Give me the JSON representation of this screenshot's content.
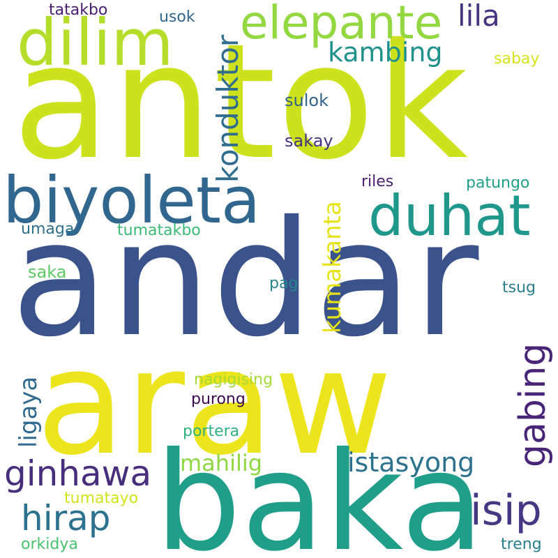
{
  "words": {
    "antok": {
      "text": "antok",
      "color": "#cde11d"
    },
    "andar": {
      "text": "andar",
      "color": "#3a538b"
    },
    "araw": {
      "text": "araw",
      "color": "#ece51b"
    },
    "baka": {
      "text": "baka",
      "color": "#1f9e89"
    },
    "biyoleta": {
      "text": "biyoleta",
      "color": "#31668e"
    },
    "dilim": {
      "text": "dilim",
      "color": "#b5de2b"
    },
    "elepante": {
      "text": "elepante",
      "color": "#93d741"
    },
    "duhat": {
      "text": "duhat",
      "color": "#1f978b"
    },
    "gabing": {
      "text": "gabing",
      "color": "#482576"
    },
    "ginhawa": {
      "text": "ginhawa",
      "color": "#472d7b"
    },
    "hirap": {
      "text": "hirap",
      "color": "#2c718e"
    },
    "isip": {
      "text": "isip",
      "color": "#453781"
    },
    "kondukor": {
      "text": "konduktor",
      "color": "#2f6c8e"
    },
    "kambing": {
      "text": "kambing",
      "color": "#21918c"
    },
    "lila": {
      "text": "lila",
      "color": "#463480"
    },
    "kumakanta": {
      "text": "kumakanta",
      "color": "#e5e419"
    },
    "istasyong": {
      "text": "istasyong",
      "color": "#2c728e"
    },
    "mahilig": {
      "text": "mahilig",
      "color": "#90d743"
    },
    "ligaya": {
      "text": "ligaya",
      "color": "#306a8e"
    },
    "tatakbo": {
      "text": "tatakbo",
      "color": "#481c6e"
    },
    "usok": {
      "text": "usok",
      "color": "#31678e"
    },
    "sabay": {
      "text": "sabay",
      "color": "#d8e219"
    },
    "sulok": {
      "text": "sulok",
      "color": "#33628d"
    },
    "sakay": {
      "text": "sakay",
      "color": "#46327e"
    },
    "riles": {
      "text": "riles",
      "color": "#481f70"
    },
    "patungo": {
      "text": "patungo",
      "color": "#1fa088"
    },
    "umaga": {
      "text": "umaga",
      "color": "#2e6e8e"
    },
    "tumatakbo": {
      "text": "tumatakbo",
      "color": "#3bbb75"
    },
    "saka": {
      "text": "saka",
      "color": "#5ec962"
    },
    "pag": {
      "text": "pag",
      "color": "#25848e"
    },
    "tsug": {
      "text": "tsug",
      "color": "#287d8e"
    },
    "nagigising": {
      "text": "nagigising",
      "color": "#a5db36"
    },
    "purong": {
      "text": "purong",
      "color": "#3e0751"
    },
    "portera": {
      "text": "portera",
      "color": "#2db27d"
    },
    "tumatayo": {
      "text": "tumatayo",
      "color": "#d2e21b"
    },
    "orkidya": {
      "text": "orkidya",
      "color": "#4ac16d"
    },
    "treng": {
      "text": "treng",
      "color": "#277f8e"
    }
  }
}
